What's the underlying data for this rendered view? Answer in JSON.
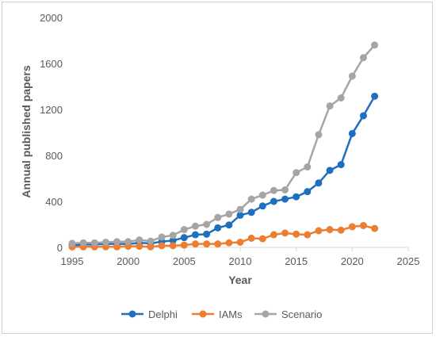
{
  "chart_data": {
    "type": "line",
    "title": "",
    "xlabel": "Year",
    "ylabel": "Annual published papers",
    "xlim": [
      1995,
      2025
    ],
    "ylim": [
      0,
      2000
    ],
    "xticks": [
      1995,
      2000,
      2005,
      2010,
      2015,
      2020,
      2025
    ],
    "yticks": [
      0,
      400,
      800,
      1200,
      1600,
      2000
    ],
    "grid": false,
    "legend_position": "bottom",
    "x": [
      1995,
      1996,
      1997,
      1998,
      1999,
      2000,
      2001,
      2002,
      2003,
      2004,
      2005,
      2006,
      2007,
      2008,
      2009,
      2010,
      2011,
      2012,
      2013,
      2014,
      2015,
      2016,
      2017,
      2018,
      2019,
      2020,
      2021,
      2022
    ],
    "series": [
      {
        "name": "Delphi",
        "color": "#1f6fbf",
        "values": [
          20,
          25,
          25,
          30,
          30,
          30,
          40,
          35,
          50,
          60,
          85,
          110,
          115,
          170,
          195,
          280,
          305,
          360,
          400,
          420,
          440,
          485,
          560,
          670,
          720,
          990,
          1145,
          1315
        ]
      },
      {
        "name": "IAMs",
        "color": "#ed7d31",
        "values": [
          5,
          5,
          5,
          5,
          5,
          10,
          10,
          5,
          15,
          15,
          20,
          30,
          30,
          30,
          40,
          45,
          80,
          75,
          110,
          125,
          115,
          110,
          145,
          155,
          150,
          180,
          190,
          165
        ]
      },
      {
        "name": "Scenario",
        "color": "#a5a5a5",
        "values": [
          35,
          40,
          40,
          45,
          50,
          50,
          65,
          55,
          90,
          105,
          155,
          185,
          200,
          260,
          290,
          330,
          420,
          455,
          495,
          500,
          650,
          700,
          980,
          1230,
          1300,
          1490,
          1650,
          1760
        ]
      }
    ]
  }
}
